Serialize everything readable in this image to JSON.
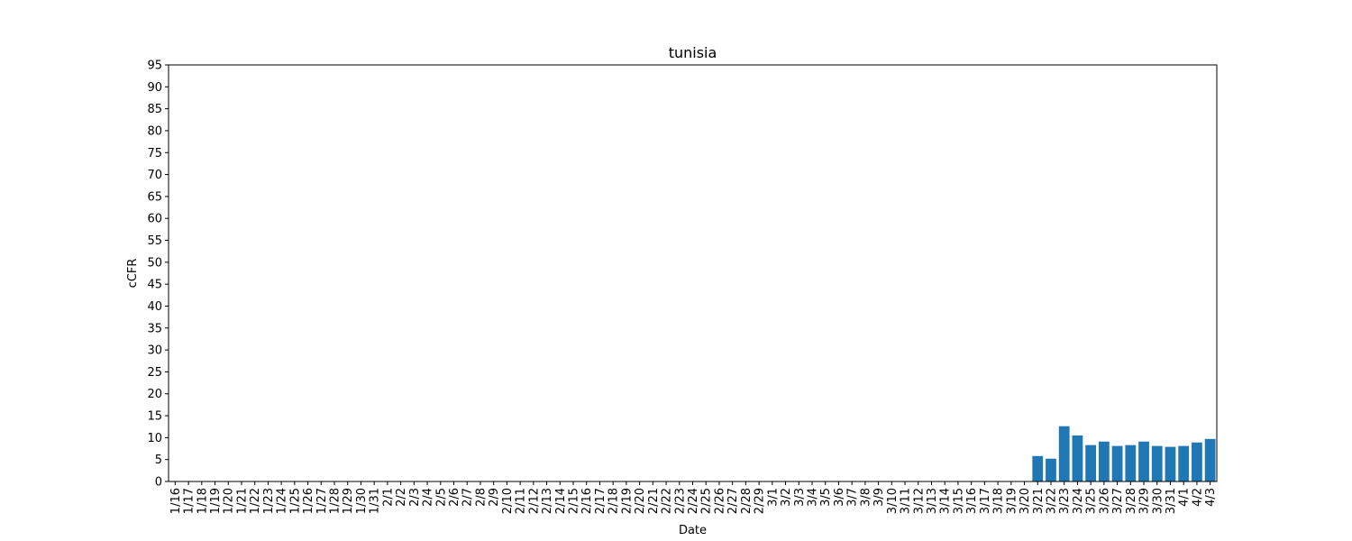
{
  "chart_data": {
    "type": "bar",
    "title": "tunisia",
    "xlabel": "Date",
    "ylabel": "cCFR",
    "ylim": [
      0,
      95
    ],
    "yticks": [
      0,
      5,
      10,
      15,
      20,
      25,
      30,
      35,
      40,
      45,
      50,
      55,
      60,
      65,
      70,
      75,
      80,
      85,
      90,
      95
    ],
    "grid": false,
    "bar_color": "#1f77b4",
    "categories": [
      "1/16",
      "1/17",
      "1/18",
      "1/19",
      "1/20",
      "1/21",
      "1/22",
      "1/23",
      "1/24",
      "1/25",
      "1/26",
      "1/27",
      "1/28",
      "1/29",
      "1/30",
      "1/31",
      "2/1",
      "2/2",
      "2/3",
      "2/4",
      "2/5",
      "2/6",
      "2/7",
      "2/8",
      "2/9",
      "2/10",
      "2/11",
      "2/12",
      "2/13",
      "2/14",
      "2/15",
      "2/16",
      "2/17",
      "2/18",
      "2/19",
      "2/20",
      "2/21",
      "2/22",
      "2/23",
      "2/24",
      "2/25",
      "2/26",
      "2/27",
      "2/28",
      "2/29",
      "3/1",
      "3/2",
      "3/3",
      "3/4",
      "3/5",
      "3/6",
      "3/7",
      "3/8",
      "3/9",
      "3/10",
      "3/11",
      "3/12",
      "3/13",
      "3/14",
      "3/15",
      "3/16",
      "3/17",
      "3/18",
      "3/19",
      "3/20",
      "3/21",
      "3/22",
      "3/23",
      "3/24",
      "3/25",
      "3/26",
      "3/27",
      "3/28",
      "3/29",
      "3/30",
      "3/31",
      "4/1",
      "4/2",
      "4/3"
    ],
    "values": [
      0,
      0,
      0,
      0,
      0,
      0,
      0,
      0,
      0,
      0,
      0,
      0,
      0,
      0,
      0,
      0,
      0,
      0,
      0,
      0,
      0,
      0,
      0,
      0,
      0,
      0,
      0,
      0,
      0,
      0,
      0,
      0,
      0,
      0,
      0,
      0,
      0,
      0,
      0,
      0,
      0,
      0,
      0,
      0,
      0,
      0,
      0,
      0,
      0,
      0,
      0,
      0,
      0,
      0,
      0,
      0,
      0,
      0,
      0,
      0,
      0,
      0,
      0,
      0,
      0,
      5.8,
      5.2,
      12.6,
      10.5,
      8.3,
      9.1,
      8.1,
      8.3,
      9.1,
      8.1,
      7.9,
      8.1,
      8.9,
      9.7
    ]
  }
}
